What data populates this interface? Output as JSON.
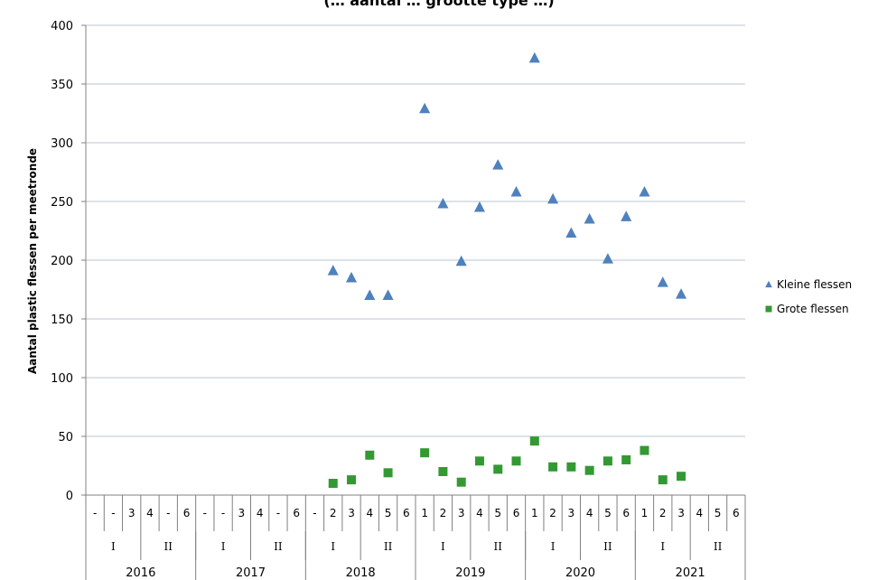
{
  "chart_data": {
    "type": "scatter",
    "title": "(… aantal … grootte type …)",
    "ylabel": "Aantal plastic flessen per meetronde",
    "ylim": [
      0,
      400
    ],
    "yticks": [
      0,
      50,
      100,
      150,
      200,
      250,
      300,
      350,
      400
    ],
    "categories": [
      {
        "year": "2016",
        "half": "I",
        "label": "-"
      },
      {
        "year": "2016",
        "half": "I",
        "label": "-"
      },
      {
        "year": "2016",
        "half": "I",
        "label": "3"
      },
      {
        "year": "2016",
        "half": "II",
        "label": "4"
      },
      {
        "year": "2016",
        "half": "II",
        "label": "-"
      },
      {
        "year": "2016",
        "half": "II",
        "label": "6"
      },
      {
        "year": "2017",
        "half": "I",
        "label": "-"
      },
      {
        "year": "2017",
        "half": "I",
        "label": "-"
      },
      {
        "year": "2017",
        "half": "I",
        "label": "3"
      },
      {
        "year": "2017",
        "half": "II",
        "label": "4"
      },
      {
        "year": "2017",
        "half": "II",
        "label": "-"
      },
      {
        "year": "2017",
        "half": "II",
        "label": "6"
      },
      {
        "year": "2018",
        "half": "I",
        "label": "-"
      },
      {
        "year": "2018",
        "half": "I",
        "label": "2"
      },
      {
        "year": "2018",
        "half": "I",
        "label": "3"
      },
      {
        "year": "2018",
        "half": "II",
        "label": "4"
      },
      {
        "year": "2018",
        "half": "II",
        "label": "5"
      },
      {
        "year": "2018",
        "half": "II",
        "label": "6"
      },
      {
        "year": "2019",
        "half": "I",
        "label": "1"
      },
      {
        "year": "2019",
        "half": "I",
        "label": "2"
      },
      {
        "year": "2019",
        "half": "I",
        "label": "3"
      },
      {
        "year": "2019",
        "half": "II",
        "label": "4"
      },
      {
        "year": "2019",
        "half": "II",
        "label": "5"
      },
      {
        "year": "2019",
        "half": "II",
        "label": "6"
      },
      {
        "year": "2020",
        "half": "I",
        "label": "1"
      },
      {
        "year": "2020",
        "half": "I",
        "label": "2"
      },
      {
        "year": "2020",
        "half": "I",
        "label": "3"
      },
      {
        "year": "2020",
        "half": "II",
        "label": "4"
      },
      {
        "year": "2020",
        "half": "II",
        "label": "5"
      },
      {
        "year": "2020",
        "half": "II",
        "label": "6"
      },
      {
        "year": "2021",
        "half": "I",
        "label": "1"
      },
      {
        "year": "2021",
        "half": "I",
        "label": "2"
      },
      {
        "year": "2021",
        "half": "I",
        "label": "3"
      },
      {
        "year": "2021",
        "half": "II",
        "label": "4"
      },
      {
        "year": "2021",
        "half": "II",
        "label": "5"
      },
      {
        "year": "2021",
        "half": "II",
        "label": "6"
      }
    ],
    "series": [
      {
        "name": "Kleine flessen",
        "marker": "triangle",
        "color": "#4f81bd",
        "values": [
          null,
          null,
          null,
          null,
          null,
          null,
          null,
          null,
          null,
          null,
          null,
          null,
          null,
          191,
          185,
          170,
          170,
          null,
          329,
          248,
          199,
          245,
          281,
          258,
          372,
          252,
          223,
          235,
          201,
          237,
          258,
          181,
          171,
          null,
          null,
          null
        ]
      },
      {
        "name": "Grote flessen",
        "marker": "square",
        "color": "#339933",
        "values": [
          null,
          null,
          null,
          null,
          null,
          null,
          null,
          null,
          null,
          null,
          null,
          null,
          null,
          10,
          13,
          34,
          19,
          null,
          36,
          20,
          11,
          29,
          22,
          29,
          46,
          24,
          24,
          21,
          29,
          30,
          38,
          13,
          16,
          null,
          null,
          null
        ]
      }
    ],
    "grid": true,
    "legend": "right"
  }
}
